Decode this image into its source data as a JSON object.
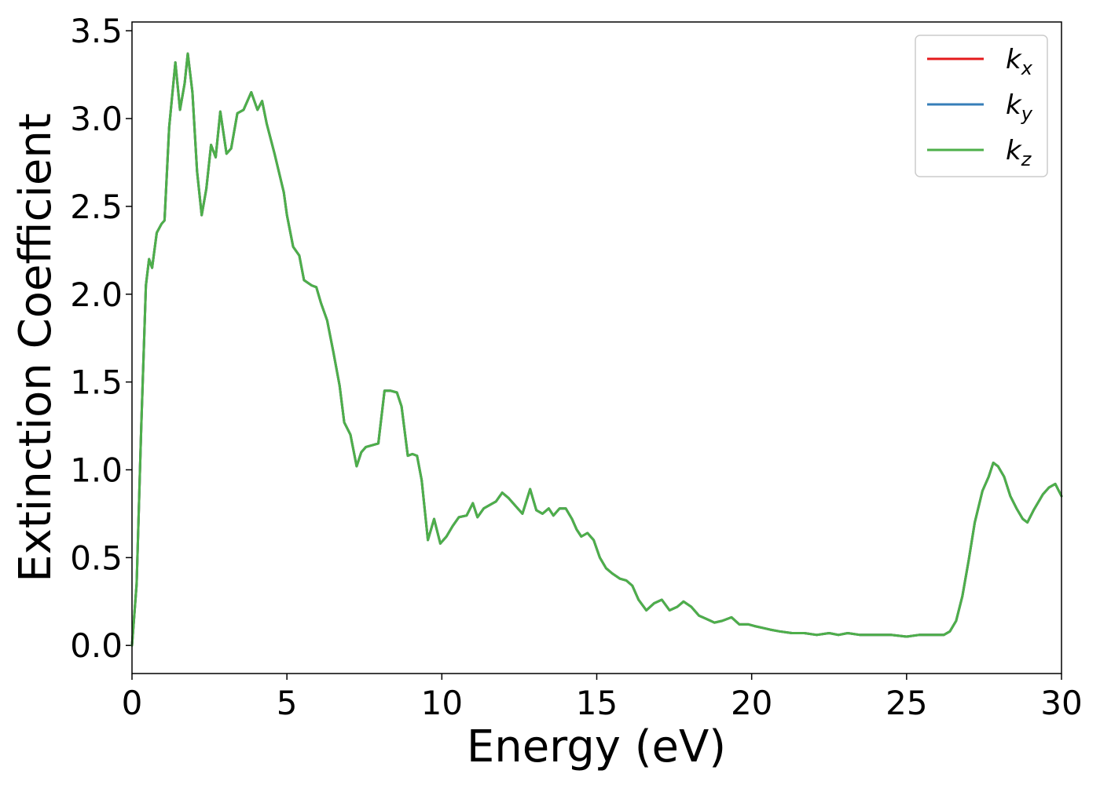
{
  "chart_data": {
    "type": "line",
    "title": "",
    "xlabel": "Energy (eV)",
    "ylabel": "Extinction Coefficient",
    "xlim": [
      0,
      30
    ],
    "ylim": [
      -0.16,
      3.55
    ],
    "xticks": [
      0,
      5,
      10,
      15,
      20,
      25,
      30
    ],
    "yticks": [
      0.0,
      0.5,
      1.0,
      1.5,
      2.0,
      2.5,
      3.0,
      3.5
    ],
    "xtick_labels": [
      "0",
      "5",
      "10",
      "15",
      "20",
      "25",
      "30"
    ],
    "ytick_labels": [
      "0.0",
      "0.5",
      "1.0",
      "1.5",
      "2.0",
      "2.5",
      "3.0",
      "3.5"
    ],
    "grid": false,
    "legend_position": "top-right",
    "legend": [
      {
        "base": "k",
        "sub": "x",
        "color": "#e41a1c"
      },
      {
        "base": "k",
        "sub": "y",
        "color": "#377eb8"
      },
      {
        "base": "k",
        "sub": "z",
        "color": "#4daf4a"
      }
    ],
    "series": [
      {
        "name": "k_x",
        "color": "#e41a1c"
      },
      {
        "name": "k_y",
        "color": "#377eb8"
      },
      {
        "name": "k_z",
        "color": "#4daf4a"
      }
    ],
    "x": [
      0,
      0.15,
      0.3,
      0.45,
      0.55,
      0.65,
      0.8,
      0.95,
      1.05,
      1.2,
      1.4,
      1.55,
      1.7,
      1.8,
      1.95,
      2.1,
      2.25,
      2.4,
      2.55,
      2.7,
      2.85,
      3.05,
      3.2,
      3.4,
      3.6,
      3.85,
      4.05,
      4.2,
      4.35,
      4.6,
      4.9,
      5.0,
      5.2,
      5.4,
      5.55,
      5.8,
      5.95,
      6.1,
      6.3,
      6.5,
      6.7,
      6.85,
      7.05,
      7.25,
      7.4,
      7.55,
      7.75,
      7.95,
      8.15,
      8.35,
      8.55,
      8.7,
      8.9,
      9.05,
      9.2,
      9.35,
      9.55,
      9.75,
      9.95,
      10.15,
      10.35,
      10.55,
      10.8,
      11.0,
      11.15,
      11.35,
      11.55,
      11.75,
      11.95,
      12.15,
      12.35,
      12.6,
      12.85,
      13.05,
      13.25,
      13.45,
      13.6,
      13.8,
      14.0,
      14.2,
      14.35,
      14.5,
      14.7,
      14.9,
      15.1,
      15.3,
      15.5,
      15.75,
      15.95,
      16.15,
      16.35,
      16.6,
      16.85,
      17.1,
      17.35,
      17.6,
      17.8,
      18.05,
      18.3,
      18.55,
      18.8,
      19.05,
      19.35,
      19.6,
      19.9,
      20.1,
      20.35,
      20.6,
      20.9,
      21.3,
      21.7,
      22.1,
      22.5,
      22.8,
      23.1,
      23.5,
      24.0,
      24.5,
      25.0,
      25.4,
      25.8,
      26.2,
      26.4,
      26.6,
      26.8,
      27.0,
      27.2,
      27.45,
      27.65,
      27.8,
      27.95,
      28.15,
      28.35,
      28.55,
      28.75,
      28.9,
      29.1,
      29.4,
      29.6,
      29.8,
      30.0
    ],
    "y": [
      0.0,
      0.35,
      1.25,
      2.05,
      2.2,
      2.15,
      2.35,
      2.4,
      2.42,
      2.95,
      3.32,
      3.05,
      3.2,
      3.37,
      3.15,
      2.7,
      2.45,
      2.6,
      2.85,
      2.78,
      3.04,
      2.8,
      2.83,
      3.03,
      3.05,
      3.15,
      3.05,
      3.1,
      2.97,
      2.8,
      2.58,
      2.45,
      2.27,
      2.22,
      2.08,
      2.05,
      2.04,
      1.95,
      1.85,
      1.67,
      1.48,
      1.27,
      1.2,
      1.02,
      1.1,
      1.13,
      1.14,
      1.15,
      1.45,
      1.45,
      1.44,
      1.36,
      1.08,
      1.09,
      1.08,
      0.94,
      0.6,
      0.72,
      0.58,
      0.62,
      0.68,
      0.73,
      0.74,
      0.81,
      0.73,
      0.78,
      0.8,
      0.82,
      0.87,
      0.84,
      0.8,
      0.75,
      0.89,
      0.77,
      0.75,
      0.78,
      0.74,
      0.78,
      0.78,
      0.72,
      0.66,
      0.62,
      0.64,
      0.6,
      0.5,
      0.44,
      0.41,
      0.38,
      0.37,
      0.34,
      0.26,
      0.2,
      0.24,
      0.26,
      0.2,
      0.22,
      0.25,
      0.22,
      0.17,
      0.15,
      0.13,
      0.14,
      0.16,
      0.12,
      0.12,
      0.11,
      0.1,
      0.09,
      0.08,
      0.07,
      0.07,
      0.06,
      0.07,
      0.06,
      0.07,
      0.06,
      0.06,
      0.06,
      0.05,
      0.06,
      0.06,
      0.06,
      0.08,
      0.14,
      0.28,
      0.48,
      0.7,
      0.88,
      0.96,
      1.04,
      1.02,
      0.96,
      0.85,
      0.78,
      0.72,
      0.7,
      0.77,
      0.86,
      0.9,
      0.92,
      0.85
    ]
  }
}
